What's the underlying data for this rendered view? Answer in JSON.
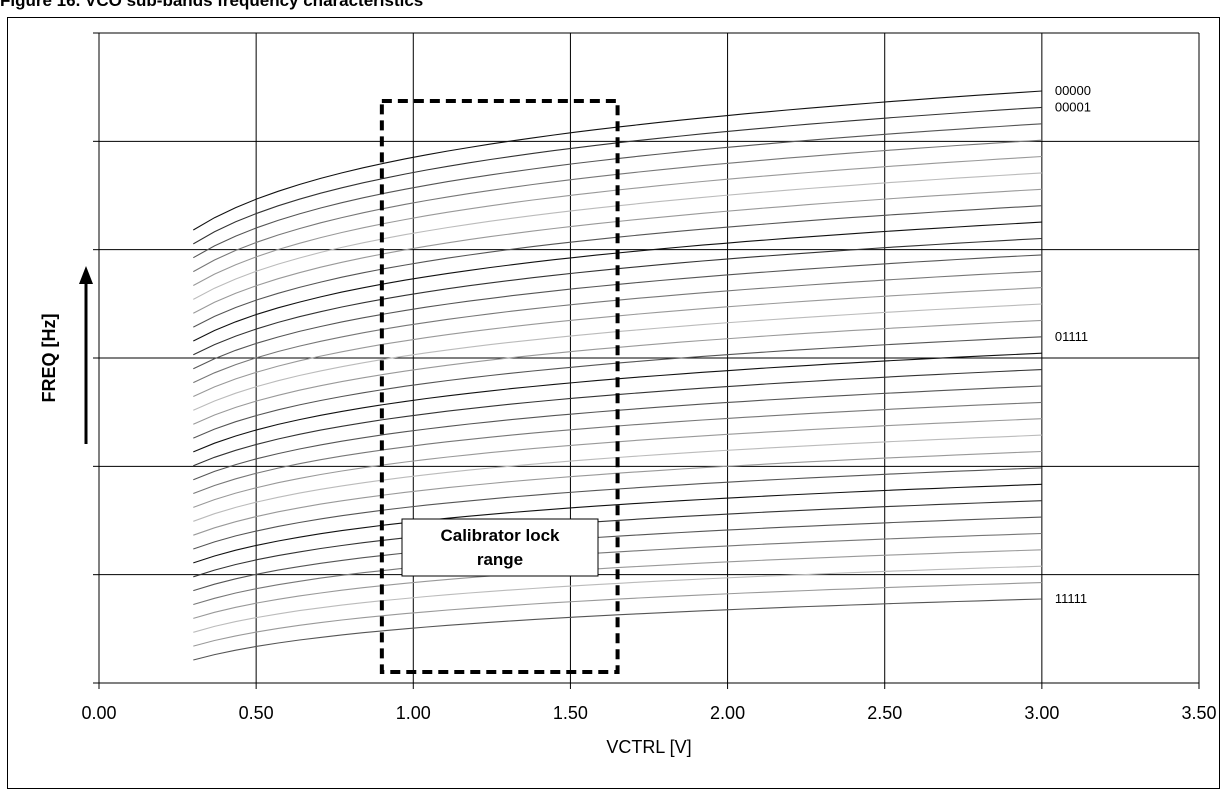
{
  "caption": "Figure 16. VCO sub-bands frequency characteristics",
  "chart_data": {
    "type": "line",
    "title": "",
    "xlabel": "VCTRL [V]",
    "ylabel": "FREQ [Hz]",
    "xlim": [
      0,
      3.5
    ],
    "x_ticks": [
      "0.00",
      "0.50",
      "1.00",
      "1.50",
      "2.00",
      "2.50",
      "3.00",
      "3.50"
    ],
    "y_tick_count": 6,
    "grid": true,
    "y_arrow": true,
    "x_start": 0.3,
    "x_end": 3.0,
    "curve_count": 32,
    "series_labels": [
      {
        "name": "00000",
        "index": 0
      },
      {
        "name": "00001",
        "index": 1
      },
      {
        "name": "01111",
        "index": 15
      },
      {
        "name": "11111",
        "index": 31
      }
    ],
    "annotation": {
      "label_line1": "Calibrator lock",
      "label_line2": "range",
      "x_range": [
        0.9,
        1.65
      ],
      "style": "dashed-box"
    }
  }
}
